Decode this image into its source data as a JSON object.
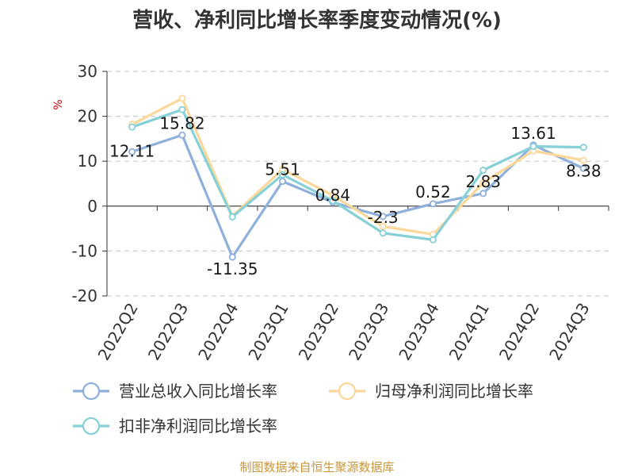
{
  "chart_data": {
    "type": "line",
    "title": "营收、净利同比增长率季度变动情况(%)",
    "ylabel": "%",
    "ylim": [
      -20,
      30
    ],
    "yticks": [
      30,
      20,
      10,
      0,
      -10,
      -20
    ],
    "grid": true,
    "legend_position": "bottom",
    "categories": [
      "2022Q2",
      "2022Q3",
      "2022Q4",
      "2023Q1",
      "2023Q2",
      "2023Q3",
      "2023Q4",
      "2024Q1",
      "2024Q2",
      "2024Q3"
    ],
    "series": [
      {
        "name": "营业总收入同比增长率",
        "color": "#8eb0db",
        "values": [
          12.11,
          15.82,
          -11.35,
          5.51,
          0.84,
          -2.3,
          0.52,
          2.83,
          13.61,
          8.38
        ],
        "labels": [
          "12.11",
          "15.82",
          "-11.35",
          "5.51",
          "0.84",
          "-2.3",
          "0.52",
          "2.83",
          "13.61",
          "8.38"
        ]
      },
      {
        "name": "归母净利润同比增长率",
        "color": "#fbd89a",
        "values": [
          18.2,
          24.0,
          -2.2,
          8.2,
          2.4,
          -4.5,
          -6.3,
          5.2,
          12.3,
          10.2
        ]
      },
      {
        "name": "扣非净利润同比增长率",
        "color": "#86d0d8",
        "values": [
          17.6,
          21.5,
          -2.4,
          7.0,
          1.2,
          -6.0,
          -7.5,
          8.0,
          13.3,
          13.1
        ]
      }
    ]
  },
  "source": "制图数据来自恒生聚源数据库"
}
